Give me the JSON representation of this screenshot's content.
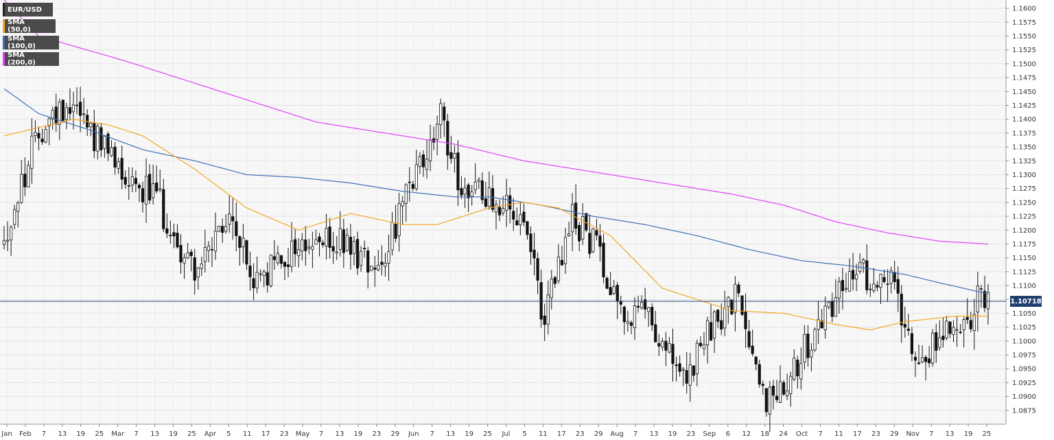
{
  "chart_data": {
    "type": "candlestick",
    "title": "EUR/USD",
    "legend": [
      {
        "label": "EUR/USD",
        "color": "#000000"
      },
      {
        "label": "SMA (50,0)",
        "color": "#f5a623"
      },
      {
        "label": "SMA (100,0)",
        "color": "#3d6fb6"
      },
      {
        "label": "SMA (200,0)",
        "color": "#e040fb"
      }
    ],
    "last_price": "1.10718",
    "ylim": [
      1.085,
      1.1615
    ],
    "y_ticks": [
      "1.1600",
      "1.1575",
      "1.1550",
      "1.1525",
      "1.1500",
      "1.1475",
      "1.1450",
      "1.1425",
      "1.1400",
      "1.1375",
      "1.1350",
      "1.1325",
      "1.1300",
      "1.1275",
      "1.1250",
      "1.1225",
      "1.1200",
      "1.1175",
      "1.1150",
      "1.1125",
      "1.1100",
      "1.1075",
      "1.1050",
      "1.1025",
      "1.1000",
      "1.0975",
      "1.0950",
      "1.0925",
      "1.0900",
      "1.0875"
    ],
    "x_ticks": [
      "Jan",
      "Feb",
      "7",
      "13",
      "19",
      "25",
      "Mar",
      "7",
      "13",
      "19",
      "25",
      "Apr",
      "5",
      "11",
      "17",
      "23",
      "May",
      "7",
      "13",
      "19",
      "23",
      "29",
      "Jun",
      "7",
      "13",
      "19",
      "25",
      "Jul",
      "5",
      "11",
      "17",
      "23",
      "29",
      "Aug",
      "7",
      "13",
      "19",
      "23",
      "Sep",
      "6",
      "12",
      "18",
      "24",
      "Oct",
      "7",
      "11",
      "17",
      "23",
      "29",
      "Nov",
      "7",
      "13",
      "19",
      "25"
    ],
    "trend_control": [
      [
        0,
        1.118
      ],
      [
        10,
        1.138
      ],
      [
        20,
        1.144
      ],
      [
        28,
        1.135
      ],
      [
        34,
        1.131
      ],
      [
        44,
        1.126
      ],
      [
        50,
        1.117
      ],
      [
        56,
        1.113
      ],
      [
        66,
        1.122
      ],
      [
        72,
        1.11
      ],
      [
        84,
        1.117
      ],
      [
        96,
        1.118
      ],
      [
        108,
        1.114
      ],
      [
        120,
        1.131
      ],
      [
        126,
        1.14
      ],
      [
        132,
        1.128
      ],
      [
        142,
        1.126
      ],
      [
        150,
        1.12
      ],
      [
        156,
        1.104
      ],
      [
        164,
        1.122
      ],
      [
        170,
        1.118
      ],
      [
        180,
        1.104
      ],
      [
        186,
        1.105
      ],
      [
        196,
        1.092
      ],
      [
        204,
        1.102
      ],
      [
        212,
        1.108
      ],
      [
        220,
        1.089
      ],
      [
        226,
        1.094
      ],
      [
        234,
        1.101
      ],
      [
        242,
        1.111
      ],
      [
        250,
        1.112
      ],
      [
        256,
        1.111
      ],
      [
        264,
        1.097
      ],
      [
        268,
        1.099
      ],
      [
        272,
        1.103
      ],
      [
        278,
        1.104
      ],
      [
        281,
        1.107
      ],
      [
        284,
        1.1072
      ]
    ],
    "sma50": [
      [
        0,
        1.137
      ],
      [
        20,
        1.14
      ],
      [
        30,
        1.139
      ],
      [
        40,
        1.137
      ],
      [
        55,
        1.131
      ],
      [
        70,
        1.124
      ],
      [
        85,
        1.12
      ],
      [
        100,
        1.123
      ],
      [
        115,
        1.121
      ],
      [
        125,
        1.121
      ],
      [
        140,
        1.124
      ],
      [
        150,
        1.125
      ],
      [
        160,
        1.124
      ],
      [
        175,
        1.119
      ],
      [
        190,
        1.1095
      ],
      [
        210,
        1.1055
      ],
      [
        225,
        1.105
      ],
      [
        240,
        1.103
      ],
      [
        250,
        1.102
      ],
      [
        260,
        1.1035
      ],
      [
        275,
        1.1045
      ],
      [
        284,
        1.1045
      ]
    ],
    "sma100": [
      [
        0,
        1.1455
      ],
      [
        10,
        1.141
      ],
      [
        25,
        1.138
      ],
      [
        40,
        1.1345
      ],
      [
        55,
        1.1325
      ],
      [
        70,
        1.13
      ],
      [
        85,
        1.1295
      ],
      [
        100,
        1.1285
      ],
      [
        115,
        1.127
      ],
      [
        130,
        1.126
      ],
      [
        140,
        1.126
      ],
      [
        155,
        1.1245
      ],
      [
        170,
        1.1225
      ],
      [
        185,
        1.121
      ],
      [
        200,
        1.119
      ],
      [
        215,
        1.1165
      ],
      [
        230,
        1.1145
      ],
      [
        245,
        1.1135
      ],
      [
        260,
        1.112
      ],
      [
        270,
        1.1105
      ],
      [
        284,
        1.1085
      ]
    ],
    "sma200": [
      [
        0,
        1.1615
      ],
      [
        10,
        1.155
      ],
      [
        35,
        1.1505
      ],
      [
        60,
        1.1455
      ],
      [
        90,
        1.1395
      ],
      [
        110,
        1.1375
      ],
      [
        130,
        1.1355
      ],
      [
        150,
        1.1325
      ],
      [
        170,
        1.1305
      ],
      [
        190,
        1.1285
      ],
      [
        210,
        1.1265
      ],
      [
        225,
        1.1245
      ],
      [
        240,
        1.1215
      ],
      [
        255,
        1.1195
      ],
      [
        270,
        1.118
      ],
      [
        284,
        1.1175
      ]
    ]
  }
}
